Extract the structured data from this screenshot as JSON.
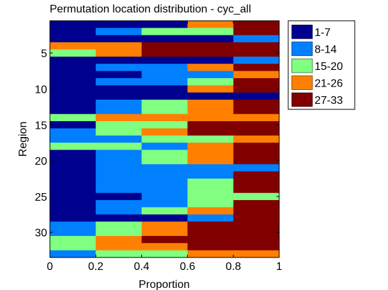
{
  "chart_data": {
    "type": "bar",
    "orientation": "horizontal-stacked-segments",
    "title": "Permutation location distribution - cyc_all",
    "xlabel": "Proportion",
    "ylabel": "Region",
    "xlim": [
      0,
      1
    ],
    "ylim": [
      0.5,
      33.5
    ],
    "y_reversed": true,
    "xticks": [
      "0",
      "0.2",
      "0.4",
      "0.6",
      "0.8",
      "1"
    ],
    "yticks": [
      "5",
      "10",
      "15",
      "20",
      "25",
      "30"
    ],
    "ytick_values": [
      5,
      10,
      15,
      20,
      25,
      30
    ],
    "grid": false,
    "legend_position": "outside-top-right",
    "legend": [
      {
        "label": "1-7",
        "color": "#00008f"
      },
      {
        "label": "8-14",
        "color": "#0080ff"
      },
      {
        "label": "15-20",
        "color": "#80ff80"
      },
      {
        "label": "21-26",
        "color": "#ff8000"
      },
      {
        "label": "27-33",
        "color": "#800000"
      }
    ],
    "colors": [
      "#00008f",
      "#0080ff",
      "#80ff80",
      "#ff8000",
      "#800000"
    ],
    "row_segments": [
      [
        0,
        0,
        0,
        3,
        4
      ],
      [
        0,
        1,
        2,
        2,
        4
      ],
      [
        0,
        0,
        0,
        0,
        1
      ],
      [
        3,
        3,
        4,
        4,
        4
      ],
      [
        2,
        3,
        4,
        4,
        4
      ],
      [
        0,
        0,
        0,
        0,
        1
      ],
      [
        0,
        1,
        1,
        3,
        4
      ],
      [
        0,
        0,
        1,
        1,
        3
      ],
      [
        0,
        1,
        1,
        2,
        4
      ],
      [
        0,
        0,
        0,
        3,
        4
      ],
      [
        0,
        0,
        0,
        0,
        0
      ],
      [
        0,
        1,
        2,
        3,
        4
      ],
      [
        0,
        1,
        2,
        3,
        4
      ],
      [
        2,
        3,
        3,
        3,
        3
      ],
      [
        0,
        2,
        2,
        4,
        4
      ],
      [
        1,
        2,
        3,
        4,
        4
      ],
      [
        1,
        1,
        2,
        2,
        3
      ],
      [
        2,
        2,
        1,
        3,
        4
      ],
      [
        0,
        1,
        2,
        3,
        4
      ],
      [
        0,
        1,
        2,
        3,
        4
      ],
      [
        0,
        1,
        1,
        1,
        1
      ],
      [
        0,
        1,
        1,
        1,
        4
      ],
      [
        0,
        1,
        1,
        2,
        4
      ],
      [
        0,
        1,
        1,
        2,
        4
      ],
      [
        0,
        0,
        1,
        2,
        2
      ],
      [
        0,
        1,
        1,
        2,
        4
      ],
      [
        0,
        1,
        2,
        3,
        4
      ],
      [
        0,
        0,
        0,
        1,
        4
      ],
      [
        1,
        2,
        3,
        4,
        4
      ],
      [
        1,
        2,
        3,
        4,
        4
      ],
      [
        2,
        3,
        4,
        4,
        4
      ],
      [
        2,
        3,
        3,
        4,
        4
      ],
      [
        1,
        2,
        2,
        3,
        3
      ]
    ]
  }
}
